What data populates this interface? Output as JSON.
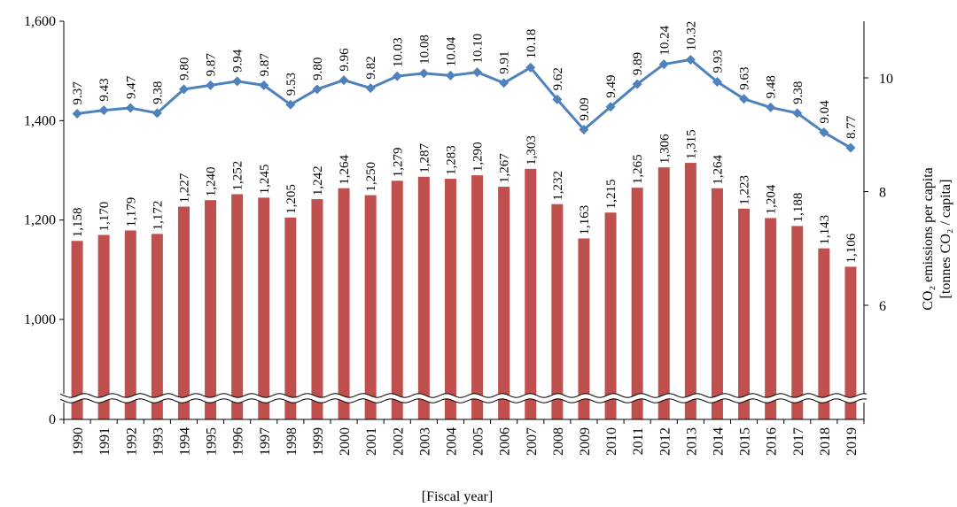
{
  "chart_data": {
    "type": "bar",
    "categories": [
      "1990",
      "1991",
      "1992",
      "1993",
      "1994",
      "1995",
      "1996",
      "1997",
      "1998",
      "1999",
      "2000",
      "2001",
      "2002",
      "2003",
      "2004",
      "2005",
      "2006",
      "2007",
      "2008",
      "2009",
      "2010",
      "2011",
      "2012",
      "2013",
      "2014",
      "2015",
      "2016",
      "2017",
      "2018",
      "2019"
    ],
    "series": [
      {
        "type": "bar",
        "axis": "left",
        "color": "#c0504d",
        "values": [
          1158,
          1170,
          1179,
          1172,
          1227,
          1240,
          1252,
          1245,
          1205,
          1242,
          1264,
          1250,
          1279,
          1287,
          1283,
          1290,
          1267,
          1303,
          1232,
          1163,
          1215,
          1265,
          1306,
          1315,
          1264,
          1223,
          1204,
          1188,
          1143,
          1106
        ],
        "labels": [
          "1,158",
          "1,170",
          "1,179",
          "1,172",
          "1,227",
          "1,240",
          "1,252",
          "1,245",
          "1,205",
          "1,242",
          "1,264",
          "1,250",
          "1,279",
          "1,287",
          "1,283",
          "1,290",
          "1,267",
          "1,303",
          "1,232",
          "1,163",
          "1,215",
          "1,265",
          "1,306",
          "1,315",
          "1,264",
          "1,223",
          "1,204",
          "1,188",
          "1,143",
          "1,106"
        ]
      },
      {
        "type": "line",
        "axis": "right",
        "color": "#4f81bd",
        "marker": "diamond",
        "values": [
          9.37,
          9.43,
          9.47,
          9.38,
          9.8,
          9.87,
          9.94,
          9.87,
          9.53,
          9.8,
          9.96,
          9.82,
          10.03,
          10.08,
          10.04,
          10.1,
          9.91,
          10.18,
          9.62,
          9.09,
          9.49,
          9.89,
          10.24,
          10.32,
          9.93,
          9.63,
          9.48,
          9.38,
          9.04,
          8.77
        ],
        "labels": [
          "9.37",
          "9.43",
          "9.47",
          "9.38",
          "9.80",
          "9.87",
          "9.94",
          "9.87",
          "9.53",
          "9.80",
          "9.96",
          "9.82",
          "10.03",
          "10.08",
          "10.04",
          "10.10",
          "9.91",
          "10.18",
          "9.62",
          "9.09",
          "9.49",
          "9.89",
          "10.24",
          "10.32",
          "9.93",
          "9.63",
          "9.48",
          "9.38",
          "9.04",
          "8.77"
        ]
      }
    ],
    "y_left": {
      "ticks": [
        {
          "value": 0,
          "label": "0"
        },
        {
          "value": 1000,
          "label": "1,000"
        },
        {
          "value": 1200,
          "label": "1,200"
        },
        {
          "value": 1400,
          "label": "1,400"
        },
        {
          "value": 1600,
          "label": "1,600"
        }
      ],
      "axis_break": true
    },
    "y_right": {
      "ticks": [
        {
          "value": 6,
          "label": "6"
        },
        {
          "value": 8,
          "label": "8"
        },
        {
          "value": 10,
          "label": "10"
        }
      ],
      "label_line1": "CO₂ emissions per capita",
      "label_line2": "[tonnes CO₂ / capita]"
    },
    "xlabel": "[Fiscal year]",
    "grid": false
  }
}
